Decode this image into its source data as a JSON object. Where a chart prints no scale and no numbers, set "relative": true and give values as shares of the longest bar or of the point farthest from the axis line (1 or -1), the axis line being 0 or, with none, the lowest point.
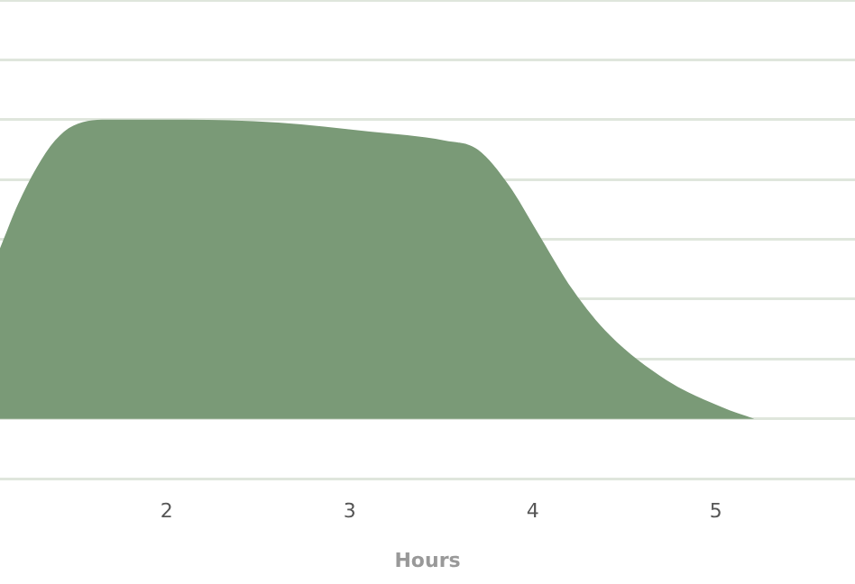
{
  "chart_data": {
    "type": "area",
    "xlabel": "Hours",
    "relative": true,
    "grid": "y",
    "xlim": [
      1.09,
      5.76
    ],
    "xticks": [
      2,
      3,
      4,
      5
    ],
    "series": [
      {
        "color": "#7a9a77",
        "x": [
          1.09,
          1.19,
          1.29,
          1.39,
          1.49,
          1.7,
          2.1,
          2.61,
          3.11,
          3.52,
          3.7,
          3.87,
          4.02,
          4.22,
          4.42,
          4.73,
          5.03,
          5.21
        ],
        "values": [
          0.57,
          0.72,
          0.84,
          0.93,
          0.98,
          1,
          1,
          0.99,
          0.96,
          0.93,
          0.9,
          0.78,
          0.63,
          0.43,
          0.28,
          0.13,
          0.04,
          0
        ]
      }
    ]
  }
}
